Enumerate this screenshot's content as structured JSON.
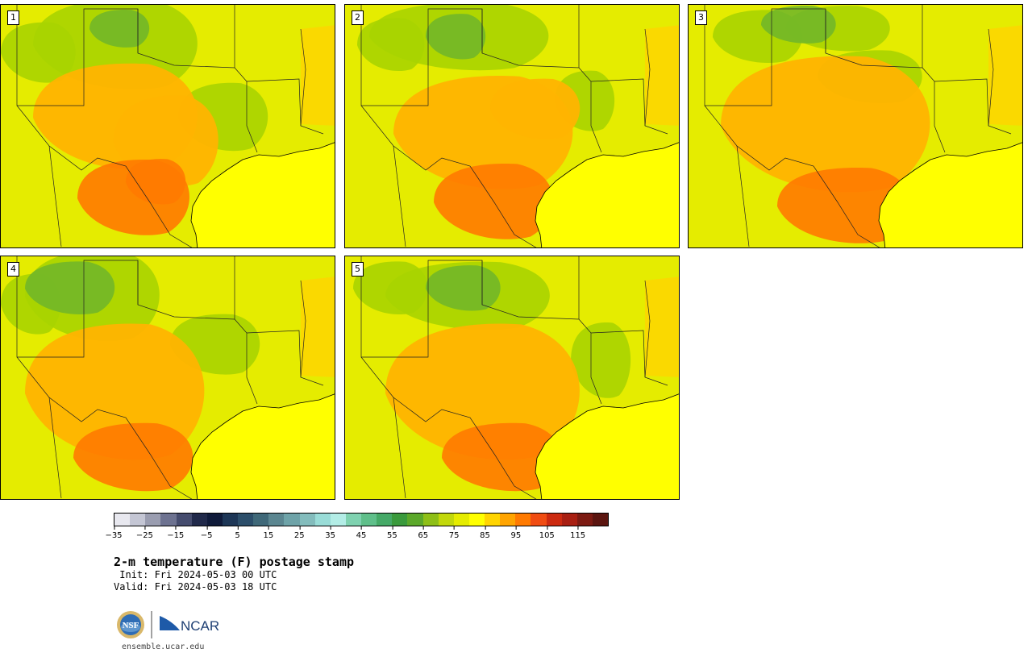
{
  "panels": [
    {
      "label": "1",
      "variant": 1
    },
    {
      "label": "2",
      "variant": 2
    },
    {
      "label": "3",
      "variant": 3
    },
    {
      "label": "4",
      "variant": 4
    },
    {
      "label": "5",
      "variant": 5
    }
  ],
  "colorbar": {
    "colors": [
      "#e8e8ef",
      "#c4c6d4",
      "#9a9db0",
      "#6d7290",
      "#454c6e",
      "#20294a",
      "#0f1a3a",
      "#1d3656",
      "#2c4e6a",
      "#3f6878",
      "#5b8690",
      "#6ea3a8",
      "#83bcbc",
      "#99dcd7",
      "#b3ede6",
      "#7fd2b0",
      "#5fbf8a",
      "#45a967",
      "#3a9a3c",
      "#5ba82a",
      "#8ebf17",
      "#c2d80b",
      "#e5ec00",
      "#ffff00",
      "#ffd400",
      "#ffa400",
      "#ff7a00",
      "#f04c12",
      "#cc2a10",
      "#a81f12",
      "#7c1a12",
      "#5b1510"
    ],
    "ticks": [
      "−35",
      "−25",
      "−15",
      "−5",
      "5",
      "15",
      "25",
      "35",
      "45",
      "55",
      "65",
      "75",
      "85",
      "95",
      "105",
      "115"
    ]
  },
  "title": "2-m temperature (F) postage stamp",
  "init": " Init: Fri 2024-05-03 00 UTC",
  "valid": "Valid: Fri 2024-05-03 18 UTC",
  "logo_text": {
    "nsf": "NSF",
    "ncar": "NCAR"
  },
  "site": "ensemble.ucar.edu"
}
